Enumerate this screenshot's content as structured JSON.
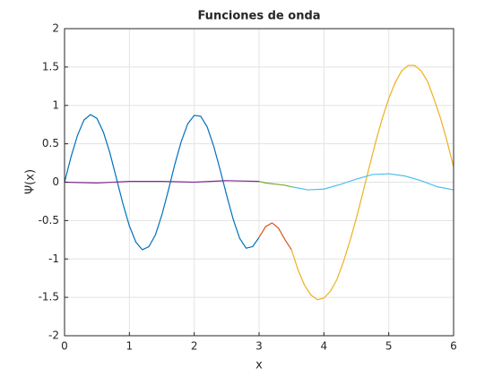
{
  "chart_data": {
    "type": "line",
    "title": "Funciones de onda",
    "xlabel": "x",
    "ylabel": "Ψ(x)",
    "xlim": [
      0,
      6
    ],
    "ylim": [
      -2,
      2
    ],
    "xticks": [
      0,
      1,
      2,
      3,
      4,
      5,
      6
    ],
    "yticks": [
      -2,
      -1.5,
      -1,
      -0.5,
      0,
      0.5,
      1,
      1.5,
      2
    ],
    "grid": true,
    "series": [
      {
        "color": "#0072BD",
        "x": [
          0,
          0.1,
          0.2,
          0.3,
          0.4,
          0.5,
          0.6,
          0.7,
          0.8,
          0.9,
          1,
          1.1,
          1.2,
          1.3,
          1.4,
          1.5,
          1.6,
          1.7,
          1.8,
          1.9,
          2,
          2.1,
          2.2,
          2.3,
          2.4,
          2.5,
          2.6,
          2.7,
          2.8,
          2.9,
          3
        ],
        "values": [
          0,
          0.33,
          0.61,
          0.81,
          0.88,
          0.83,
          0.65,
          0.38,
          0.05,
          -0.28,
          -0.57,
          -0.78,
          -0.88,
          -0.84,
          -0.69,
          -0.43,
          -0.11,
          0.23,
          0.53,
          0.76,
          0.87,
          0.86,
          0.72,
          0.47,
          0.16,
          -0.17,
          -0.48,
          -0.73,
          -0.86,
          -0.84,
          -0.72
        ]
      },
      {
        "color": "#D95319",
        "x": [
          3,
          3.1,
          3.2,
          3.3,
          3.4,
          3.5
        ],
        "values": [
          -0.72,
          -0.58,
          -0.53,
          -0.6,
          -0.75,
          -0.88
        ]
      },
      {
        "color": "#EDB120",
        "x": [
          3.5,
          3.6,
          3.7,
          3.8,
          3.9,
          4,
          4.1,
          4.2,
          4.3,
          4.4,
          4.5,
          4.6,
          4.7,
          4.8,
          4.9,
          5,
          5.1,
          5.2,
          5.3,
          5.4,
          5.5,
          5.6,
          5.7,
          5.8,
          5.9,
          6
        ],
        "values": [
          -0.88,
          -1.14,
          -1.34,
          -1.47,
          -1.53,
          -1.51,
          -1.42,
          -1.27,
          -1.04,
          -0.77,
          -0.47,
          -0.14,
          0.2,
          0.53,
          0.83,
          1.09,
          1.3,
          1.45,
          1.52,
          1.52,
          1.45,
          1.31,
          1.08,
          0.83,
          0.53,
          0.2
        ]
      },
      {
        "color": "#7E2F8E",
        "x": [
          0,
          0.5,
          1,
          1.5,
          2,
          2.5,
          3
        ],
        "values": [
          0,
          -0.01,
          0.01,
          0.01,
          0,
          0.02,
          0.01
        ]
      },
      {
        "color": "#77AC30",
        "x": [
          3,
          3.1,
          3.2,
          3.3,
          3.4,
          3.5
        ],
        "values": [
          0.01,
          -0.01,
          -0.02,
          -0.03,
          -0.04,
          -0.06
        ]
      },
      {
        "color": "#4DBEEE",
        "x": [
          3.5,
          3.75,
          4,
          4.25,
          4.5,
          4.75,
          5,
          5.25,
          5.5,
          5.75,
          6
        ],
        "values": [
          -0.06,
          -0.1,
          -0.09,
          -0.03,
          0.04,
          0.1,
          0.11,
          0.08,
          0.02,
          -0.06,
          -0.1
        ]
      }
    ]
  }
}
